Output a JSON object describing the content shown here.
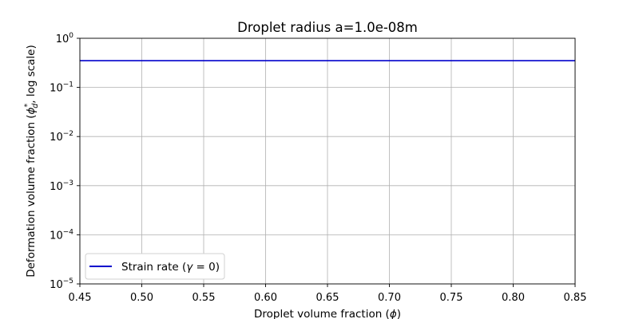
{
  "chart_data": {
    "type": "line",
    "title": "Droplet radius a=1.0e-08m",
    "xlabel": "Droplet volume fraction (ϕ)",
    "ylabel": "Deformation volume fraction (ϕ_d*, log scale)",
    "xlim": [
      0.45,
      0.85
    ],
    "ylim": [
      1e-05,
      1
    ],
    "yscale": "log",
    "grid": true,
    "legend_position": "lower-left",
    "x_ticks": [
      "0.45",
      "0.50",
      "0.55",
      "0.60",
      "0.65",
      "0.70",
      "0.75",
      "0.80",
      "0.85"
    ],
    "y_ticks": [
      {
        "base": "10",
        "exp": "0",
        "value": 1
      },
      {
        "base": "10",
        "exp": "−1",
        "value": 0.1
      },
      {
        "base": "10",
        "exp": "−2",
        "value": 0.01
      },
      {
        "base": "10",
        "exp": "−3",
        "value": 0.001
      },
      {
        "base": "10",
        "exp": "−4",
        "value": 0.0001
      },
      {
        "base": "10",
        "exp": "−5",
        "value": 1e-05
      }
    ],
    "series": [
      {
        "name": "Strain rate (γ = 0)",
        "color": "#0000cc",
        "x": [
          0.45,
          0.85
        ],
        "y": [
          0.35,
          0.35
        ]
      }
    ]
  }
}
